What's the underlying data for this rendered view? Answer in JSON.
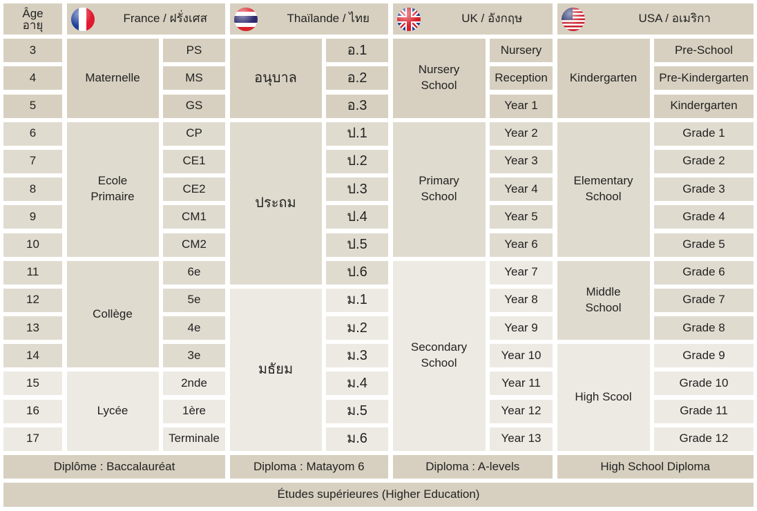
{
  "age_header": {
    "fr": "Âge",
    "th": "อายุ"
  },
  "ages": [
    "3",
    "4",
    "5",
    "6",
    "7",
    "8",
    "9",
    "10",
    "11",
    "12",
    "13",
    "14",
    "15",
    "16",
    "17"
  ],
  "colors": {
    "dark": "#d7d0c0",
    "medium": "#e0dbcf",
    "light": "#edeae3"
  },
  "countries": [
    {
      "key": "france",
      "flag": "france-flag-icon",
      "title": "France / ฝรั่งเศส",
      "thai_text": false,
      "groups": [
        {
          "label": "Maternelle",
          "from": 3,
          "to": 5,
          "shade": "dark"
        },
        {
          "label": "Ecole Primaire",
          "from": 6,
          "to": 10,
          "shade": "medium"
        },
        {
          "label": "Collège",
          "from": 11,
          "to": 14,
          "shade": "medium"
        },
        {
          "label": "Lycée",
          "from": 15,
          "to": 17,
          "shade": "light"
        }
      ],
      "levels": [
        "PS",
        "MS",
        "GS",
        "CP",
        "CE1",
        "CE2",
        "CM1",
        "CM2",
        "6e",
        "5e",
        "4e",
        "3e",
        "2nde",
        "1ère",
        "Terminale"
      ],
      "level_shades": [
        "dark",
        "dark",
        "dark",
        "medium",
        "medium",
        "medium",
        "medium",
        "medium",
        "medium",
        "medium",
        "medium",
        "medium",
        "light",
        "light",
        "light"
      ],
      "diploma": "Diplôme : Baccalauréat"
    },
    {
      "key": "thailand",
      "flag": "thailand-flag-icon",
      "title": "Thaïlande / ไทย",
      "thai_text": true,
      "groups": [
        {
          "label": "อนุบาล",
          "from": 3,
          "to": 5,
          "shade": "dark"
        },
        {
          "label": "ประถม",
          "from": 6,
          "to": 11,
          "shade": "medium"
        },
        {
          "label": "มธัยม",
          "from": 12,
          "to": 17,
          "shade": "light"
        }
      ],
      "levels": [
        "อ.1",
        "อ.2",
        "อ.3",
        "ป.1",
        "ป.2",
        "ป.3",
        "ป.4",
        "ป.5",
        "ป.6",
        "ม.1",
        "ม.2",
        "ม.3",
        "ม.4",
        "ม.5",
        "ม.6"
      ],
      "level_shades": [
        "dark",
        "dark",
        "dark",
        "medium",
        "medium",
        "medium",
        "medium",
        "medium",
        "medium",
        "light",
        "light",
        "light",
        "light",
        "light",
        "light"
      ],
      "diploma": "Diploma : Matayom 6"
    },
    {
      "key": "uk",
      "flag": "uk-flag-icon",
      "title": "UK / อังกฤษ",
      "thai_text": false,
      "groups": [
        {
          "label": "Nursery School",
          "from": 3,
          "to": 5,
          "shade": "dark"
        },
        {
          "label": "Primary School",
          "from": 6,
          "to": 10,
          "shade": "medium"
        },
        {
          "label": "Secondary School",
          "from": 11,
          "to": 17,
          "shade": "light"
        }
      ],
      "levels": [
        "Nursery",
        "Reception",
        "Year 1",
        "Year 2",
        "Year 3",
        "Year 4",
        "Year 5",
        "Year 6",
        "Year 7",
        "Year 8",
        "Year 9",
        "Year 10",
        "Year 11",
        "Year 12",
        "Year 13"
      ],
      "level_shades": [
        "dark",
        "dark",
        "dark",
        "medium",
        "medium",
        "medium",
        "medium",
        "medium",
        "light",
        "light",
        "light",
        "light",
        "light",
        "light",
        "light"
      ],
      "diploma": "Diploma : A-levels"
    },
    {
      "key": "usa",
      "flag": "usa-flag-icon",
      "title": "USA / อเมริกา",
      "thai_text": false,
      "groups": [
        {
          "label": "Kindergarten",
          "from": 3,
          "to": 5,
          "shade": "dark"
        },
        {
          "label": "Elementary School",
          "from": 6,
          "to": 10,
          "shade": "medium"
        },
        {
          "label": "Middle School",
          "from": 11,
          "to": 13,
          "shade": "medium"
        },
        {
          "label": "High Scool",
          "from": 14,
          "to": 17,
          "shade": "light"
        }
      ],
      "levels": [
        "Pre-School",
        "Pre-Kindergarten",
        "Kindergarten",
        "Grade 1",
        "Grade 2",
        "Grade 3",
        "Grade 4",
        "Grade 5",
        "Grade 6",
        "Grade 7",
        "Grade 8",
        "Grade 9",
        "Grade 10",
        "Grade 11",
        "Grade 12"
      ],
      "level_shades": [
        "dark",
        "dark",
        "dark",
        "medium",
        "medium",
        "medium",
        "medium",
        "medium",
        "medium",
        "medium",
        "medium",
        "light",
        "light",
        "light",
        "light"
      ],
      "diploma": "High School Diploma"
    }
  ],
  "higher_education": "Études supérieures (Higher Education)"
}
